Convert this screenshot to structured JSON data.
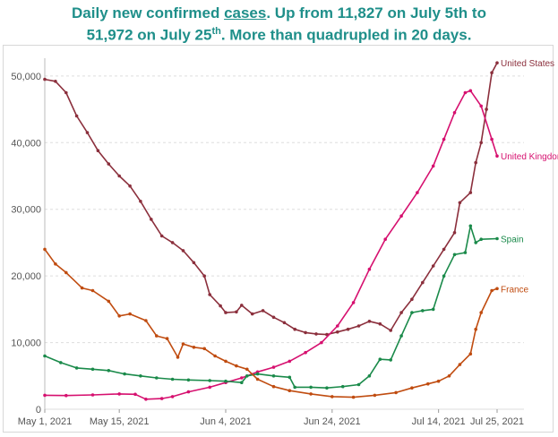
{
  "header": {
    "line1_a": "Daily new confirmed ",
    "line1_link": "cases",
    "line1_b": ". Up from 11,827 on July 5th to",
    "line2_a": "51,972 on July 25",
    "line2_sup": "th",
    "line2_b": ". More than quadrupled in 20 days."
  },
  "colors": {
    "United States": "#8b2f3c",
    "United Kingdom": "#d6106f",
    "Spain": "#1a8a4a",
    "France": "#c04c10",
    "grid": "#dddddd"
  },
  "chart_data": {
    "type": "line",
    "title": "Daily new confirmed cases. Up from 11,827 on July 5th to 51,972 on July 25th. More than quadrupled in 20 days.",
    "xlabel": "",
    "ylabel": "",
    "x_range": [
      "2021-05-01",
      "2021-07-25"
    ],
    "ylim": [
      0,
      52000
    ],
    "grid": true,
    "legend": "inline labels at line ends (right)",
    "x_ticks": [
      "May 1, 2021",
      "May 15, 2021",
      "Jun 4, 2021",
      "Jun 24, 2021",
      "Jul 14, 2021",
      "Jul 25, 2021"
    ],
    "x_tick_dates": [
      "2021-05-01",
      "2021-05-15",
      "2021-06-04",
      "2021-06-24",
      "2021-07-14",
      "2021-07-25"
    ],
    "y_ticks": [
      0,
      10000,
      20000,
      30000,
      40000,
      50000
    ],
    "y_tick_labels": [
      "0",
      "10,000",
      "20,000",
      "30,000",
      "40,000",
      "50,000"
    ],
    "series": [
      {
        "name": "United States",
        "points": [
          [
            "2021-05-01",
            49500
          ],
          [
            "2021-05-03",
            49200
          ],
          [
            "2021-05-05",
            47500
          ],
          [
            "2021-05-07",
            44000
          ],
          [
            "2021-05-09",
            41500
          ],
          [
            "2021-05-11",
            38800
          ],
          [
            "2021-05-13",
            36800
          ],
          [
            "2021-05-15",
            35000
          ],
          [
            "2021-05-17",
            33500
          ],
          [
            "2021-05-19",
            31200
          ],
          [
            "2021-05-21",
            28500
          ],
          [
            "2021-05-23",
            26000
          ],
          [
            "2021-05-25",
            25000
          ],
          [
            "2021-05-27",
            23800
          ],
          [
            "2021-05-29",
            22000
          ],
          [
            "2021-05-31",
            20000
          ],
          [
            "2021-06-01",
            17200
          ],
          [
            "2021-06-03",
            15500
          ],
          [
            "2021-06-04",
            14500
          ],
          [
            "2021-06-06",
            14600
          ],
          [
            "2021-06-07",
            15600
          ],
          [
            "2021-06-09",
            14300
          ],
          [
            "2021-06-11",
            14800
          ],
          [
            "2021-06-13",
            13800
          ],
          [
            "2021-06-15",
            13000
          ],
          [
            "2021-06-17",
            12000
          ],
          [
            "2021-06-19",
            11500
          ],
          [
            "2021-06-21",
            11300
          ],
          [
            "2021-06-23",
            11200
          ],
          [
            "2021-06-25",
            11600
          ],
          [
            "2021-06-27",
            12000
          ],
          [
            "2021-06-29",
            12500
          ],
          [
            "2021-07-01",
            13200
          ],
          [
            "2021-07-03",
            12800
          ],
          [
            "2021-07-05",
            11827
          ],
          [
            "2021-07-07",
            14500
          ],
          [
            "2021-07-09",
            16500
          ],
          [
            "2021-07-11",
            19000
          ],
          [
            "2021-07-13",
            21500
          ],
          [
            "2021-07-15",
            24000
          ],
          [
            "2021-07-17",
            26500
          ],
          [
            "2021-07-18",
            31000
          ],
          [
            "2021-07-20",
            32500
          ],
          [
            "2021-07-21",
            37000
          ],
          [
            "2021-07-22",
            40000
          ],
          [
            "2021-07-23",
            45000
          ],
          [
            "2021-07-24",
            50500
          ],
          [
            "2021-07-25",
            51972
          ]
        ]
      },
      {
        "name": "United Kingdom",
        "points": [
          [
            "2021-05-01",
            2100
          ],
          [
            "2021-05-05",
            2050
          ],
          [
            "2021-05-10",
            2150
          ],
          [
            "2021-05-15",
            2300
          ],
          [
            "2021-05-18",
            2250
          ],
          [
            "2021-05-20",
            1500
          ],
          [
            "2021-05-23",
            1600
          ],
          [
            "2021-05-25",
            1900
          ],
          [
            "2021-05-28",
            2600
          ],
          [
            "2021-06-01",
            3300
          ],
          [
            "2021-06-04",
            4000
          ],
          [
            "2021-06-07",
            4700
          ],
          [
            "2021-06-10",
            5600
          ],
          [
            "2021-06-13",
            6300
          ],
          [
            "2021-06-16",
            7200
          ],
          [
            "2021-06-19",
            8500
          ],
          [
            "2021-06-22",
            10000
          ],
          [
            "2021-06-25",
            12500
          ],
          [
            "2021-06-28",
            16000
          ],
          [
            "2021-07-01",
            21000
          ],
          [
            "2021-07-04",
            25500
          ],
          [
            "2021-07-07",
            29000
          ],
          [
            "2021-07-10",
            32500
          ],
          [
            "2021-07-13",
            36500
          ],
          [
            "2021-07-15",
            40500
          ],
          [
            "2021-07-17",
            44500
          ],
          [
            "2021-07-19",
            47500
          ],
          [
            "2021-07-20",
            47800
          ],
          [
            "2021-07-22",
            45500
          ],
          [
            "2021-07-24",
            40500
          ],
          [
            "2021-07-25",
            38000
          ]
        ]
      },
      {
        "name": "Spain",
        "points": [
          [
            "2021-05-01",
            8000
          ],
          [
            "2021-05-04",
            7000
          ],
          [
            "2021-05-07",
            6200
          ],
          [
            "2021-05-10",
            6000
          ],
          [
            "2021-05-13",
            5800
          ],
          [
            "2021-05-16",
            5300
          ],
          [
            "2021-05-19",
            5000
          ],
          [
            "2021-05-22",
            4700
          ],
          [
            "2021-05-25",
            4500
          ],
          [
            "2021-05-28",
            4400
          ],
          [
            "2021-06-01",
            4300
          ],
          [
            "2021-06-04",
            4200
          ],
          [
            "2021-06-07",
            4000
          ],
          [
            "2021-06-08",
            5000
          ],
          [
            "2021-06-10",
            5300
          ],
          [
            "2021-06-13",
            5000
          ],
          [
            "2021-06-16",
            4800
          ],
          [
            "2021-06-17",
            3300
          ],
          [
            "2021-06-20",
            3300
          ],
          [
            "2021-06-23",
            3200
          ],
          [
            "2021-06-26",
            3400
          ],
          [
            "2021-06-29",
            3700
          ],
          [
            "2021-07-01",
            5000
          ],
          [
            "2021-07-03",
            7500
          ],
          [
            "2021-07-05",
            7400
          ],
          [
            "2021-07-07",
            11000
          ],
          [
            "2021-07-09",
            14500
          ],
          [
            "2021-07-11",
            14800
          ],
          [
            "2021-07-13",
            15000
          ],
          [
            "2021-07-15",
            20000
          ],
          [
            "2021-07-17",
            23200
          ],
          [
            "2021-07-19",
            23500
          ],
          [
            "2021-07-20",
            27500
          ],
          [
            "2021-07-21",
            25000
          ],
          [
            "2021-07-22",
            25500
          ],
          [
            "2021-07-25",
            25600
          ]
        ]
      },
      {
        "name": "France",
        "points": [
          [
            "2021-05-01",
            24000
          ],
          [
            "2021-05-03",
            21800
          ],
          [
            "2021-05-05",
            20500
          ],
          [
            "2021-05-08",
            18200
          ],
          [
            "2021-05-10",
            17800
          ],
          [
            "2021-05-13",
            16200
          ],
          [
            "2021-05-15",
            14000
          ],
          [
            "2021-05-17",
            14300
          ],
          [
            "2021-05-20",
            13300
          ],
          [
            "2021-05-22",
            11000
          ],
          [
            "2021-05-24",
            10600
          ],
          [
            "2021-05-26",
            7800
          ],
          [
            "2021-05-27",
            9800
          ],
          [
            "2021-05-29",
            9300
          ],
          [
            "2021-05-31",
            9100
          ],
          [
            "2021-06-02",
            8000
          ],
          [
            "2021-06-04",
            7200
          ],
          [
            "2021-06-06",
            6500
          ],
          [
            "2021-06-08",
            6000
          ],
          [
            "2021-06-10",
            4500
          ],
          [
            "2021-06-13",
            3400
          ],
          [
            "2021-06-16",
            2800
          ],
          [
            "2021-06-20",
            2300
          ],
          [
            "2021-06-24",
            1900
          ],
          [
            "2021-06-28",
            1800
          ],
          [
            "2021-07-02",
            2100
          ],
          [
            "2021-07-06",
            2500
          ],
          [
            "2021-07-09",
            3200
          ],
          [
            "2021-07-12",
            3800
          ],
          [
            "2021-07-14",
            4200
          ],
          [
            "2021-07-16",
            5000
          ],
          [
            "2021-07-18",
            6700
          ],
          [
            "2021-07-20",
            8300
          ],
          [
            "2021-07-21",
            12000
          ],
          [
            "2021-07-22",
            14500
          ],
          [
            "2021-07-24",
            17800
          ],
          [
            "2021-07-25",
            18100
          ]
        ]
      }
    ]
  }
}
